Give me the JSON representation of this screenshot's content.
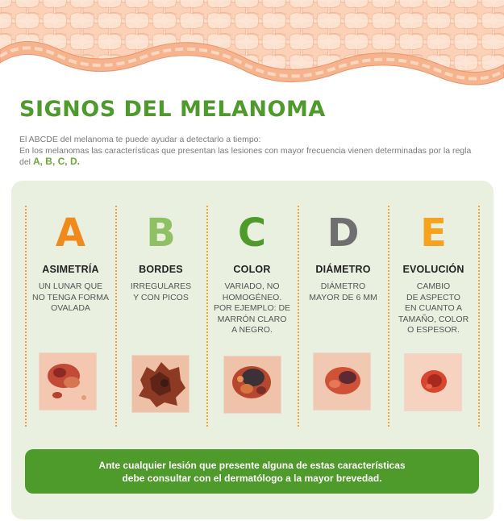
{
  "header": {
    "title": "SIGNOS DEL MELANOMA",
    "intro_line1": "El ABCDE del melanoma te puede ayudar a detectarlo a tiempo:",
    "intro_line2": "En los melanomas las características que presentan las lesiones con mayor frecuencia vienen determinadas por la regla",
    "intro_line3_prefix": "del",
    "intro_highlight": "A, B, C, D."
  },
  "signs": [
    {
      "letter": "A",
      "color": "#f08a1c",
      "heading": "ASIMETRÍA",
      "text": "UN LUNAR QUE\nNO TENGA FORMA\nOVALADA"
    },
    {
      "letter": "B",
      "color": "#8fc063",
      "heading": "BORDES",
      "text": "IRREGULARES\nY CON PICOS"
    },
    {
      "letter": "C",
      "color": "#4e9a2a",
      "heading": "COLOR",
      "text": "VARIADO, NO\nHOMOGÉNEO.\nPOR EJEMPLO: DE\nMARRÓN CLARO\nA NEGRO."
    },
    {
      "letter": "D",
      "color": "#6f6f6f",
      "heading": "DIÁMETRO",
      "text": "DIÁMETRO\nMAYOR DE 6 MM"
    },
    {
      "letter": "E",
      "color": "#f7a21c",
      "heading": "EVOLUCIÓN",
      "text": "CAMBIO\nDE ASPECTO\nEN CUANTO A\nTAMAÑO, COLOR\nO ESPESOR."
    }
  ],
  "banner": {
    "text": "Ante cualquier lesión que presente alguna de estas características\ndebe consultar con el dermatólogo a la mayor brevedad."
  },
  "colors": {
    "green": "#4e9a2a",
    "panel": "#eaf0e0",
    "dotted": "#f2a23a",
    "skin": "#fbdcc8"
  }
}
